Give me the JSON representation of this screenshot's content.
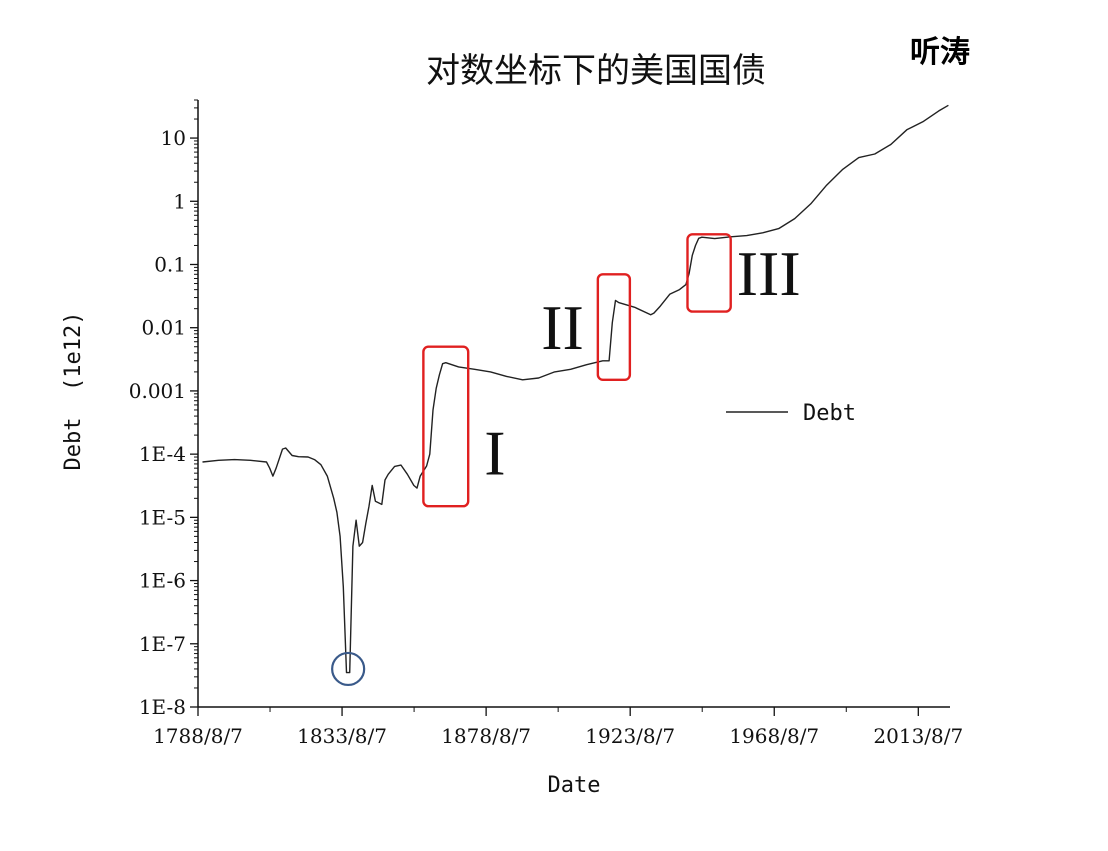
{
  "chart_data": {
    "type": "line",
    "title": "对数坐标下的美国国债",
    "author_mark": "听涛",
    "xlabel": "Date",
    "ylabel": "Debt  (1e12)",
    "y_scale": "log",
    "ylim": [
      1e-08,
      40
    ],
    "xlim": [
      1788.6,
      2023.5
    ],
    "x_tick_labels": [
      "1788/8/7",
      "1833/8/7",
      "1878/8/7",
      "1923/8/7",
      "1968/8/7",
      "2013/8/7"
    ],
    "x_tick_values": [
      1788.6,
      1833.6,
      1878.6,
      1923.6,
      1968.6,
      2013.6
    ],
    "y_tick_labels": [
      "1E-8",
      "1E-7",
      "1E-6",
      "1E-5",
      "1E-4",
      "0.001",
      "0.01",
      "0.1",
      "1",
      "10"
    ],
    "y_tick_values": [
      1e-08,
      1e-07,
      1e-06,
      1e-05,
      0.0001,
      0.001,
      0.01,
      0.1,
      1,
      10
    ],
    "legend": {
      "position": "right",
      "entries": [
        "Debt"
      ]
    },
    "line_color": "#222222",
    "series": [
      {
        "name": "Debt",
        "points": [
          [
            1790,
            7.5e-05
          ],
          [
            1795,
            8e-05
          ],
          [
            1800,
            8.2e-05
          ],
          [
            1805,
            8e-05
          ],
          [
            1810,
            7.5e-05
          ],
          [
            1811,
            6e-05
          ],
          [
            1812,
            4.5e-05
          ],
          [
            1813,
            6e-05
          ],
          [
            1815,
            0.00012
          ],
          [
            1816,
            0.000125
          ],
          [
            1818,
            9.5e-05
          ],
          [
            1820,
            9.1e-05
          ],
          [
            1823,
            9e-05
          ],
          [
            1825,
            8.2e-05
          ],
          [
            1827,
            6.8e-05
          ],
          [
            1829,
            4.5e-05
          ],
          [
            1831,
            2e-05
          ],
          [
            1832,
            1.2e-05
          ],
          [
            1833,
            5e-06
          ],
          [
            1834,
            8e-07
          ],
          [
            1835,
            3.5e-08
          ],
          [
            1836,
            3.5e-08
          ],
          [
            1837,
            3.5e-06
          ],
          [
            1838,
            9e-06
          ],
          [
            1839,
            3.5e-06
          ],
          [
            1840,
            4e-06
          ],
          [
            1841,
            8e-06
          ],
          [
            1842,
            1.5e-05
          ],
          [
            1843,
            3.2e-05
          ],
          [
            1844,
            1.8e-05
          ],
          [
            1846,
            1.6e-05
          ],
          [
            1847,
            3.9e-05
          ],
          [
            1848,
            4.8e-05
          ],
          [
            1850,
            6.4e-05
          ],
          [
            1852,
            6.7e-05
          ],
          [
            1854,
            4.8e-05
          ],
          [
            1856,
            3.2e-05
          ],
          [
            1857,
            2.9e-05
          ],
          [
            1858,
            4.5e-05
          ],
          [
            1860,
            6.5e-05
          ],
          [
            1861,
            0.0001
          ],
          [
            1862,
            0.0005
          ],
          [
            1863,
            0.0011
          ],
          [
            1864,
            0.0018
          ],
          [
            1865,
            0.0027
          ],
          [
            1866,
            0.0028
          ],
          [
            1870,
            0.0024
          ],
          [
            1875,
            0.0022
          ],
          [
            1880,
            0.002
          ],
          [
            1885,
            0.0017
          ],
          [
            1890,
            0.0015
          ],
          [
            1895,
            0.0016
          ],
          [
            1900,
            0.002
          ],
          [
            1905,
            0.0022
          ],
          [
            1910,
            0.0026
          ],
          [
            1915,
            0.003
          ],
          [
            1917,
            0.003
          ],
          [
            1918,
            0.012
          ],
          [
            1919,
            0.027
          ],
          [
            1920,
            0.025
          ],
          [
            1925,
            0.021
          ],
          [
            1930,
            0.016
          ],
          [
            1931,
            0.017
          ],
          [
            1933,
            0.022
          ],
          [
            1936,
            0.034
          ],
          [
            1939,
            0.04
          ],
          [
            1941,
            0.048
          ],
          [
            1942,
            0.072
          ],
          [
            1943,
            0.14
          ],
          [
            1944,
            0.2
          ],
          [
            1945,
            0.26
          ],
          [
            1946,
            0.27
          ],
          [
            1950,
            0.257
          ],
          [
            1955,
            0.274
          ],
          [
            1960,
            0.286
          ],
          [
            1965,
            0.317
          ],
          [
            1970,
            0.37
          ],
          [
            1975,
            0.533
          ],
          [
            1980,
            0.908
          ],
          [
            1985,
            1.8
          ],
          [
            1990,
            3.2
          ],
          [
            1995,
            4.9
          ],
          [
            2000,
            5.6
          ],
          [
            2005,
            7.9
          ],
          [
            2010,
            13.5
          ],
          [
            2015,
            18.1
          ],
          [
            2020,
            26.9
          ],
          [
            2023,
            33
          ]
        ]
      }
    ],
    "annotations": [
      {
        "label": "I",
        "type": "rect",
        "x0": 1859,
        "x1": 1873,
        "y0": 1.5e-05,
        "y1": 0.005,
        "color": "#e02020"
      },
      {
        "label": "II",
        "type": "rect",
        "x0": 1913.5,
        "x1": 1923.5,
        "y0": 0.0015,
        "y1": 0.07,
        "color": "#e02020"
      },
      {
        "label": "III",
        "type": "rect",
        "x0": 1941.5,
        "x1": 1955,
        "y0": 0.018,
        "y1": 0.3,
        "color": "#e02020"
      },
      {
        "label": "",
        "type": "circle",
        "x": 1835.5,
        "y": 4e-08,
        "color": "#3a5a8a"
      }
    ]
  }
}
